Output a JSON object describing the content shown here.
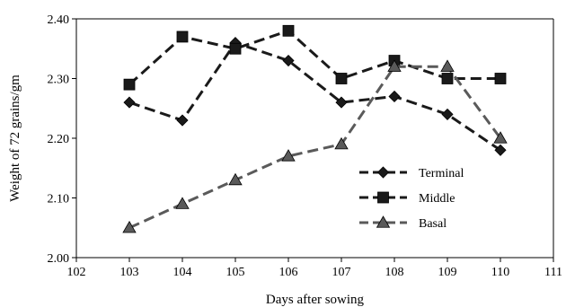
{
  "chart_data": {
    "type": "line",
    "xlabel": "Days after sowing",
    "ylabel": "Weight of 72 grains/gm",
    "xlim": [
      102,
      111
    ],
    "ylim": [
      2.0,
      2.4
    ],
    "x_ticks": [
      "102",
      "103",
      "104",
      "105",
      "106",
      "107",
      "108",
      "109",
      "110",
      "111"
    ],
    "y_ticks": [
      "2.00",
      "2.10",
      "2.20",
      "2.30",
      "2.40"
    ],
    "x": [
      103,
      104,
      105,
      106,
      107,
      108,
      109,
      110
    ],
    "grid": false,
    "legend_position": "bottom-right",
    "series": [
      {
        "name": "Terminal",
        "marker": "diamond",
        "color": "#1a1a1a",
        "values": [
          2.26,
          2.23,
          2.36,
          2.33,
          2.26,
          2.27,
          2.24,
          2.18
        ]
      },
      {
        "name": "Middle",
        "marker": "square",
        "color": "#1a1a1a",
        "values": [
          2.29,
          2.37,
          2.35,
          2.38,
          2.3,
          2.33,
          2.3,
          2.3
        ]
      },
      {
        "name": "Basal",
        "marker": "triangle",
        "color": "#5a5a5a",
        "values": [
          2.05,
          2.09,
          2.13,
          2.17,
          2.19,
          2.32,
          2.32,
          2.2
        ]
      }
    ]
  }
}
